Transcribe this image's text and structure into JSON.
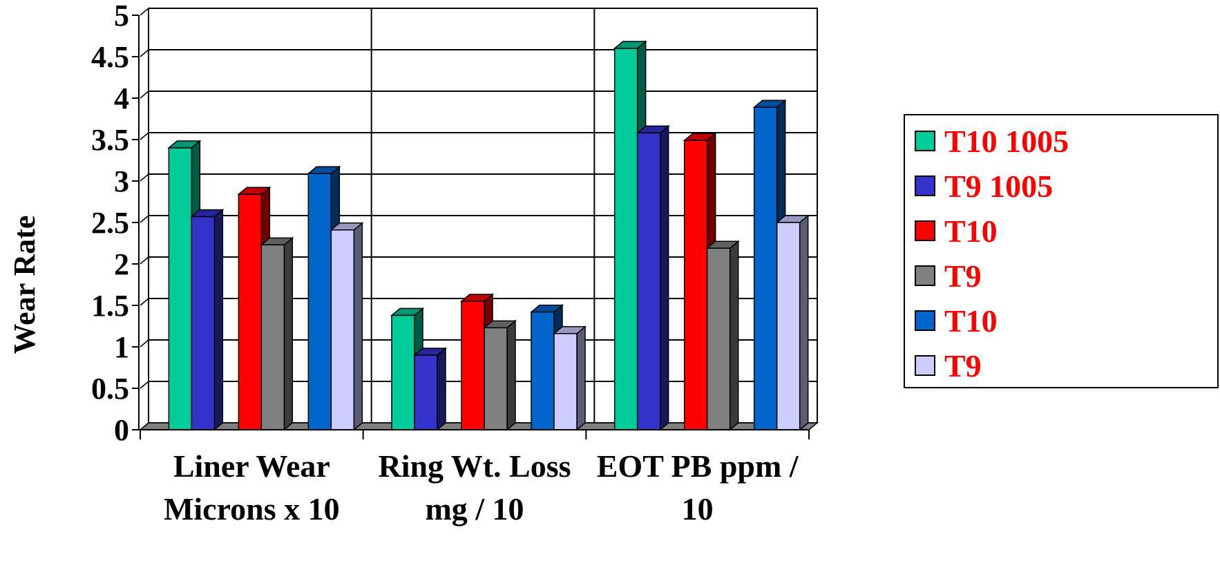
{
  "chart_data": {
    "type": "bar",
    "title": "",
    "xlabel": "",
    "ylabel": "Wear Rate",
    "ylim": [
      0,
      5
    ],
    "yticks": [
      "0",
      "0.5",
      "1",
      "1.5",
      "2",
      "2.5",
      "3",
      "3.5",
      "4",
      "4.5",
      "5"
    ],
    "categories": [
      [
        "Liner Wear",
        "Microns x 10"
      ],
      [
        "Ring Wt. Loss",
        "mg / 10"
      ],
      [
        "EOT PB ppm /",
        "10"
      ]
    ],
    "series": [
      {
        "name": "T10 1005",
        "color": "#00cc99",
        "values": [
          3.4,
          1.38,
          4.6
        ]
      },
      {
        "name": "T9 1005",
        "color": "#3333cc",
        "values": [
          2.57,
          0.9,
          3.58
        ]
      },
      {
        "name": "T10",
        "color": "#ff0000",
        "values": [
          2.84,
          1.55,
          3.49
        ]
      },
      {
        "name": "T9",
        "color": "#808080",
        "values": [
          2.23,
          1.23,
          2.19
        ]
      },
      {
        "name": "T10",
        "color": "#0066cc",
        "values": [
          3.09,
          1.42,
          3.89
        ]
      },
      {
        "name": "T9",
        "color": "#ccccff",
        "values": [
          2.41,
          1.16,
          2.5
        ]
      }
    ],
    "grid": true,
    "legend_position": "right",
    "legend_text_color": "#ff0000",
    "floor_color": "#808080"
  }
}
